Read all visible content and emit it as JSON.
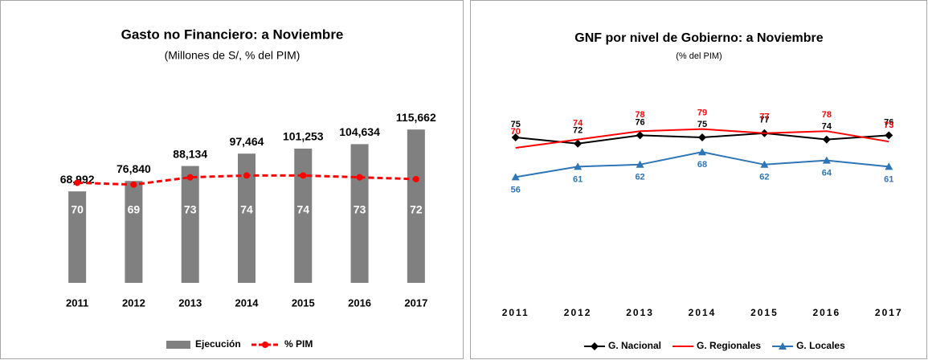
{
  "chart_data": [
    {
      "type": "bar",
      "title": "Gasto no Financiero: a Noviembre",
      "subtitle": "(Millones de S/, % del PIM)",
      "categories": [
        "2011",
        "2012",
        "2013",
        "2014",
        "2015",
        "2016",
        "2017"
      ],
      "series": [
        {
          "name": "Ejecución",
          "type": "bar",
          "color": "#808080",
          "values": [
            68992,
            76840,
            88134,
            97464,
            101253,
            104634,
            115662
          ],
          "value_labels": [
            "68,992",
            "76,840",
            "88,134",
            "97,464",
            "101,253",
            "104,634",
            "115,662"
          ]
        },
        {
          "name": "% PIM",
          "type": "line",
          "axis": "y2",
          "color": "#ff0000",
          "values": [
            70,
            69,
            73,
            74,
            74,
            73,
            72
          ]
        }
      ],
      "ylim": [
        0,
        140000
      ],
      "y2lim": [
        15,
        117
      ],
      "legend": "bottom"
    },
    {
      "type": "line",
      "title": "GNF por nivel de Gobierno: a Noviembre",
      "subtitle": "(% del PIM)",
      "categories": [
        "2011",
        "2012",
        "2013",
        "2014",
        "2015",
        "2016",
        "2017"
      ],
      "series": [
        {
          "name": "G. Nacional",
          "color": "#000000",
          "marker": "diamond",
          "values": [
            75,
            72,
            76,
            75,
            77,
            74,
            76
          ]
        },
        {
          "name": "G. Regionales",
          "color": "#ff0000",
          "marker": "none",
          "values": [
            70,
            74,
            78,
            79,
            77,
            78,
            73
          ]
        },
        {
          "name": "G. Locales",
          "color": "#2e75b6",
          "marker": "triangle",
          "values": [
            56,
            61,
            62,
            68,
            62,
            64,
            61
          ]
        }
      ],
      "ylim": [
        0,
        100
      ],
      "legend": "bottom"
    }
  ]
}
